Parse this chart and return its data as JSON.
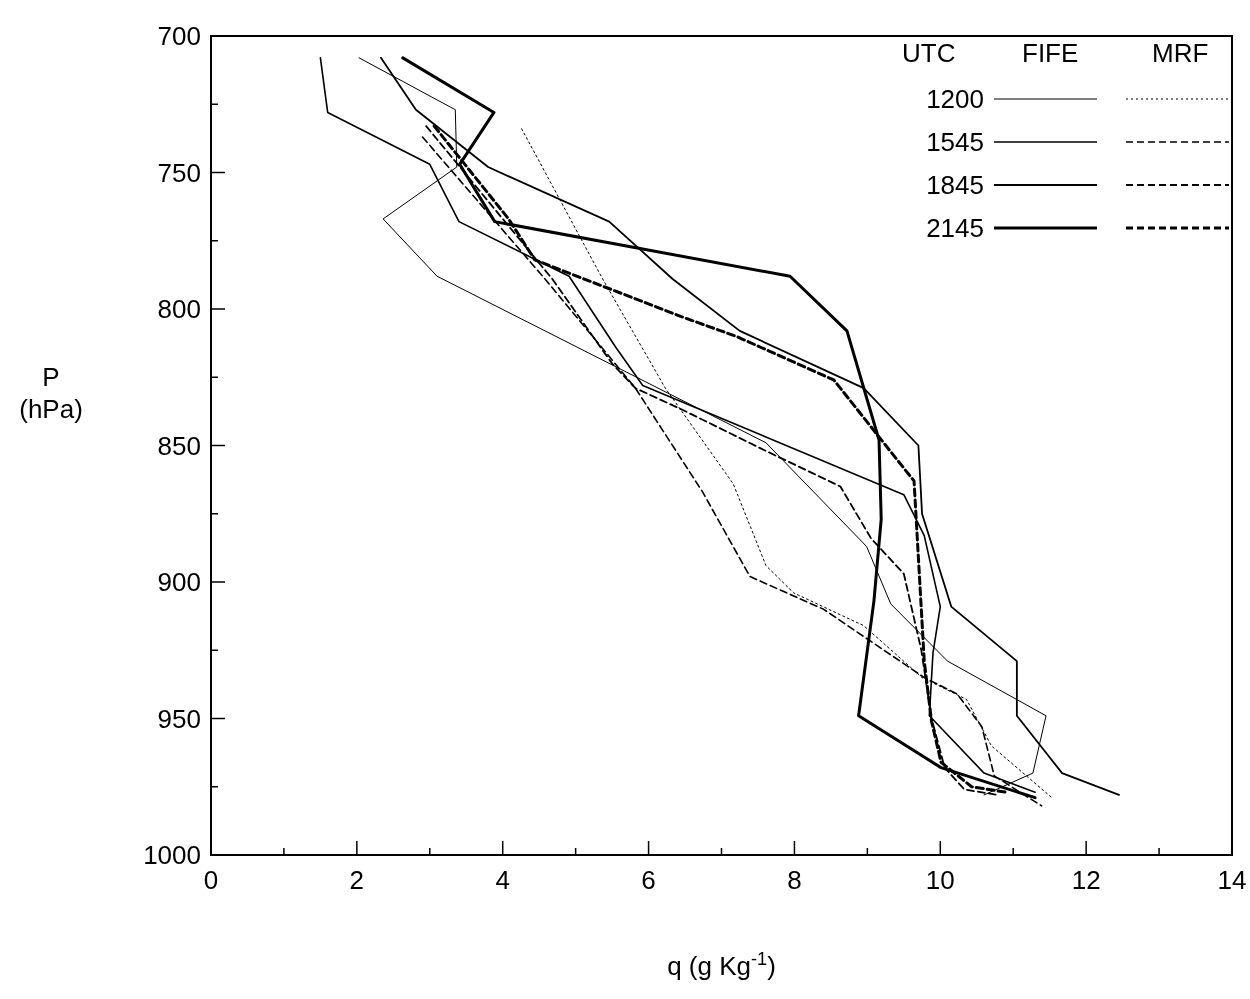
{
  "chart_data": {
    "type": "line",
    "xlabel": "q (g Kg$^{-1}$)",
    "ylabel": "P (hPa)",
    "legend_title": "UTC",
    "annotations": [
      "FIFE",
      "MRF"
    ],
    "xlim": [
      0,
      14
    ],
    "xticks": [
      0,
      {
        "value": 1,
        "label": null
      },
      2,
      {
        "value": 3,
        "label": null
      },
      4,
      {
        "value": 5,
        "label": null
      },
      6,
      {
        "value": 7,
        "label": null
      },
      8,
      {
        "value": 9,
        "label": null
      },
      10,
      {
        "value": 11,
        "label": null
      },
      12,
      {
        "value": 13,
        "label": null
      },
      14
    ],
    "ylim": [
      1000,
      700
    ],
    "yticks": [
      700,
      {
        "value": 725,
        "label": null
      },
      750,
      {
        "value": 775,
        "label": null
      },
      800,
      {
        "value": 825,
        "label": null
      },
      850,
      {
        "value": 875,
        "label": null
      },
      900,
      {
        "value": 925,
        "label": null
      },
      950,
      {
        "value": 975,
        "label": null
      },
      1000
    ],
    "grid": false,
    "legend": "top right",
    "marker": "none",
    "series": [
      {
        "name": "1200",
        "color": "#000000",
        "line_style": "solid",
        "x": [
          2.03,
          3.35,
          3.37,
          2.36,
          3.1,
          7.61,
          8.99,
          9.32,
          10.1,
          11.45,
          11.27,
          10.6
        ],
        "values": [
          708,
          727,
          748,
          767,
          788,
          849,
          887,
          908,
          929,
          949,
          970,
          978
        ]
      },
      {
        "color": "#000000",
        "line_style": "dotted",
        "x": [
          4.26,
          5.37,
          6.23,
          7.16,
          7.61,
          7.99,
          8.95,
          9.75,
          10.36,
          10.7,
          11.53
        ],
        "values": [
          734,
          789,
          829,
          864,
          894,
          904,
          916,
          935,
          943,
          960,
          979
        ]
      },
      {
        "name": "1545",
        "color": "#000000",
        "line_style": "solid",
        "x": [
          1.5,
          1.6,
          3.0,
          3.4,
          4.91,
          5.55,
          5.92,
          9.5,
          9.78,
          10.0,
          9.9,
          9.85,
          10.6,
          11.3
        ],
        "values": [
          708,
          728,
          747,
          768,
          788,
          814,
          828,
          868,
          883,
          909,
          926,
          949,
          970,
          977
        ]
      },
      {
        "color": "#000000",
        "line_style": "dashed",
        "x": [
          2.9,
          4.58,
          5.82,
          6.74,
          7.39,
          8.4,
          9.78,
          10.23,
          10.57,
          10.74,
          11.39
        ],
        "values": [
          737,
          789,
          829,
          867,
          898,
          910,
          935,
          941,
          953,
          971,
          982
        ]
      },
      {
        "name": "1845",
        "color": "#000000",
        "line_style": "solid",
        "x": [
          2.33,
          2.81,
          3.8,
          5.46,
          6.33,
          7.25,
          8.95,
          9.7,
          9.75,
          10.15,
          11.05,
          11.05,
          11.67,
          12.45
        ],
        "values": [
          708,
          727,
          748,
          768,
          789,
          808,
          829,
          850,
          875,
          909,
          929,
          949,
          970,
          978
        ]
      },
      {
        "color": "#000000",
        "line_style": "dashed",
        "x": [
          2.95,
          4.68,
          5.5,
          5.82,
          6.47,
          7.61,
          8.63,
          9.05,
          9.5,
          9.74,
          9.88,
          10.06,
          10.33,
          10.79
        ],
        "values": [
          733,
          789,
          820,
          829,
          837,
          852,
          865,
          884,
          897,
          925,
          950,
          968,
          976,
          978
        ]
      },
      {
        "name": "2145",
        "color": "#000000",
        "line_style": "solid",
        "x": [
          2.63,
          3.88,
          3.41,
          3.89,
          7.94,
          8.72,
          9.16,
          9.19,
          9.09,
          8.88,
          10.01,
          11.3
        ],
        "values": [
          708,
          728,
          747,
          768,
          788,
          808,
          848,
          877,
          907,
          949,
          968,
          979
        ]
      },
      {
        "color": "#000000",
        "line_style": "dashed",
        "x": [
          3.06,
          4.08,
          4.44,
          6.47,
          7.2,
          8.54,
          9.64,
          9.74,
          9.78,
          9.88,
          10.01,
          10.43,
          10.9
        ],
        "values": [
          733,
          767,
          782,
          803,
          810,
          826,
          863,
          910,
          929,
          951,
          966,
          975,
          977
        ]
      }
    ]
  }
}
